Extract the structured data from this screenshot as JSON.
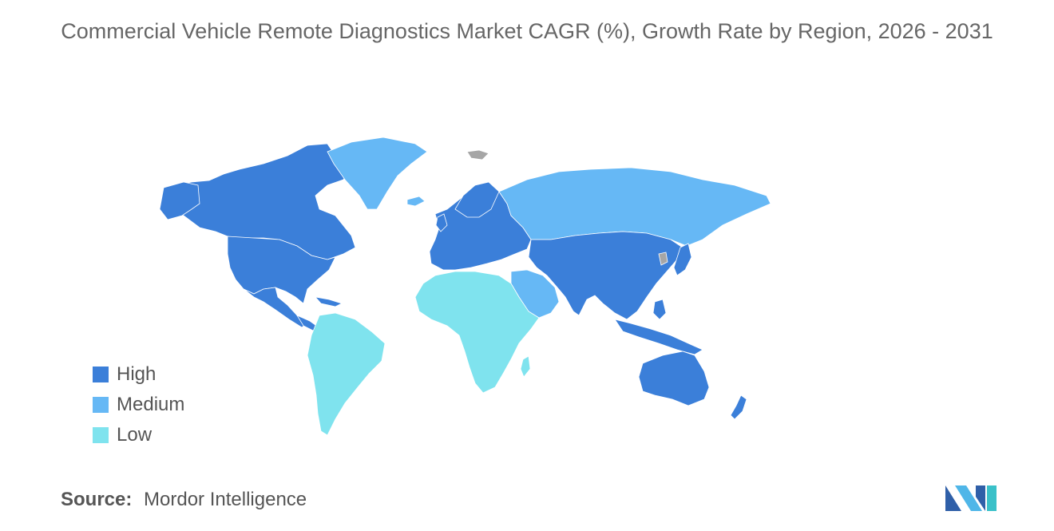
{
  "title": "Commercial Vehicle Remote Diagnostics Market CAGR (%), Growth Rate by Region, 2026 - 2031",
  "colors": {
    "high": "#3b7fd9",
    "medium": "#66b8f5",
    "low": "#7fe3ee",
    "no_data": "#a6a6a6",
    "border": "#ffffff"
  },
  "legend": [
    {
      "label": "High",
      "color": "#3b7fd9"
    },
    {
      "label": "Medium",
      "color": "#66b8f5"
    },
    {
      "label": "Low",
      "color": "#7fe3ee"
    }
  ],
  "regions": {
    "north_america": "High",
    "europe": "High",
    "asia_pacific": "High",
    "south_america": "Low",
    "africa": "Low",
    "middle_east": "Medium",
    "russia": "Medium",
    "greenland": "Medium"
  },
  "source": {
    "label": "Source:",
    "value": "Mordor Intelligence"
  },
  "logo": "mordor-intelligence-logo"
}
